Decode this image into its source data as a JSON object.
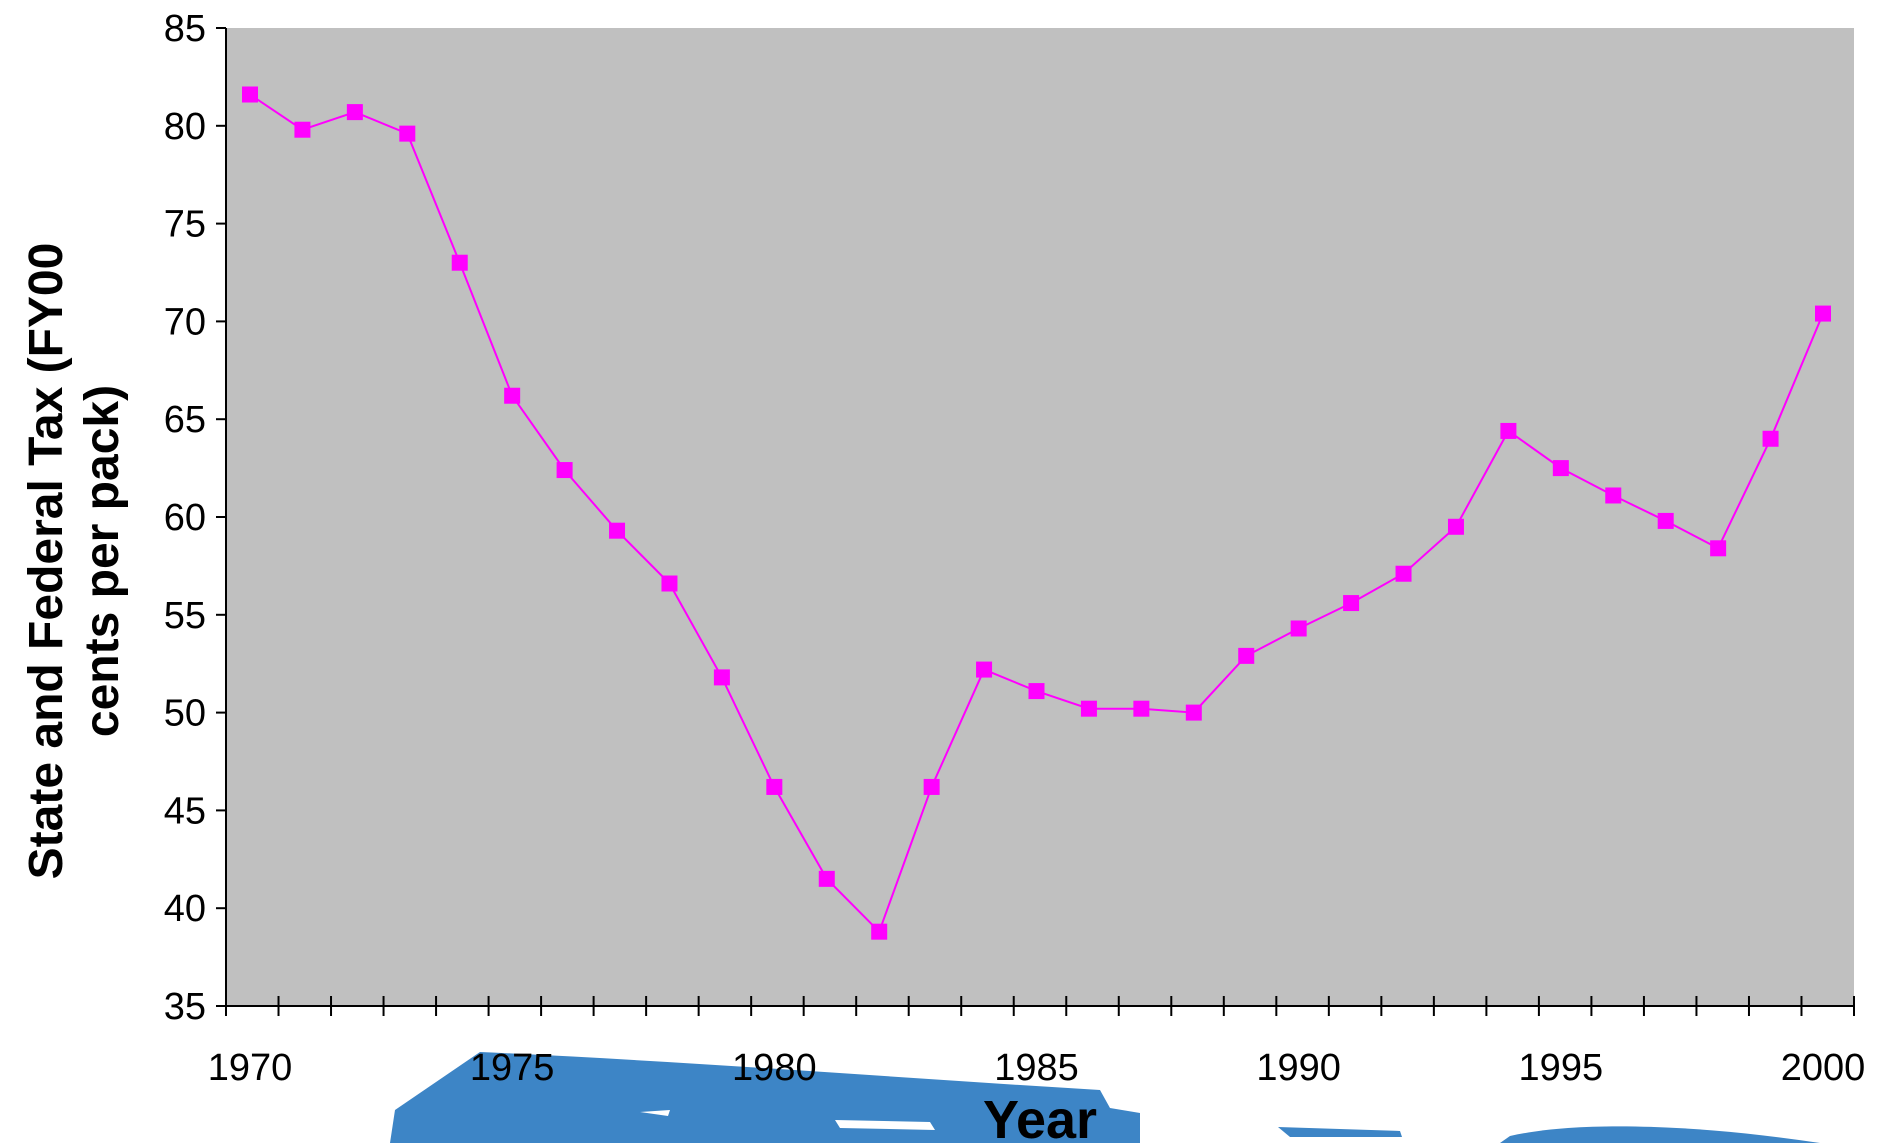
{
  "chart_data": {
    "type": "line",
    "title": "",
    "xlabel": "Year",
    "ylabel_line1": "State and Federal Tax (FY00",
    "ylabel_line2": "cents per pack)",
    "xlim": [
      1970,
      2000
    ],
    "ylim": [
      35,
      85
    ],
    "x_ticks": [
      1970,
      1975,
      1980,
      1985,
      1990,
      1995,
      2000
    ],
    "y_ticks": [
      35,
      40,
      45,
      50,
      55,
      60,
      65,
      70,
      75,
      80,
      85
    ],
    "grid": false,
    "legend": "none",
    "colors": {
      "plot_background": "#c0c0c0",
      "series": "#ff00ff",
      "decoration": "#3d85c6"
    },
    "series": [
      {
        "x": [
          1970,
          1971,
          1972,
          1973,
          1974,
          1975,
          1976,
          1977,
          1978,
          1979,
          1980,
          1981,
          1982,
          1983,
          1984,
          1985,
          1986,
          1987,
          1988,
          1989,
          1990,
          1991,
          1992,
          1993,
          1994,
          1995,
          1996,
          1997,
          1998,
          1999,
          2000
        ],
        "values": [
          81.6,
          79.8,
          80.7,
          79.6,
          73.0,
          66.2,
          62.4,
          59.3,
          56.6,
          51.8,
          46.2,
          41.5,
          38.8,
          46.2,
          52.2,
          51.1,
          50.2,
          50.2,
          50.0,
          52.9,
          54.3,
          55.6,
          57.1,
          59.5,
          64.4,
          62.5,
          61.1,
          59.8,
          58.4,
          64.0,
          70.4
        ]
      }
    ]
  }
}
